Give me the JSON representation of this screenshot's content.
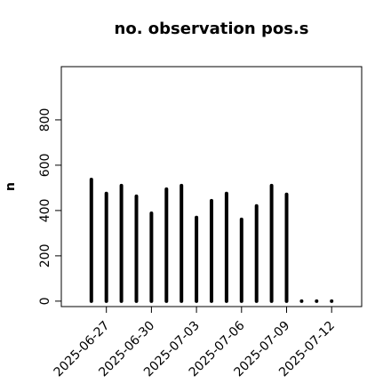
{
  "chart_data": {
    "type": "histlines",
    "title": "no. observation pos.s",
    "y_label": "n",
    "x": [
      "2025-06-26",
      "2025-06-27",
      "2025-06-28",
      "2025-06-29",
      "2025-06-30",
      "2025-07-01",
      "2025-07-02",
      "2025-07-03",
      "2025-07-04",
      "2025-07-05",
      "2025-07-06",
      "2025-07-07",
      "2025-07-08",
      "2025-07-09",
      "2025-07-10",
      "2025-07-11",
      "2025-07-12"
    ],
    "values": [
      537,
      475,
      510,
      463,
      388,
      494,
      510,
      369,
      443,
      475,
      361,
      420,
      510,
      471,
      0,
      0,
      0
    ],
    "color": "#000000",
    "xlim": [
      "2025-06-24",
      "2025-07-14"
    ],
    "xticks": [
      "2025-06-27",
      "2025-06-30",
      "2025-07-03",
      "2025-07-06",
      "2025-07-09",
      "2025-07-12"
    ],
    "highlight_tick": "2025-07-03",
    "highlight_color": "#228b22",
    "ylim": [
      -24,
      1035
    ],
    "yticks": [
      0,
      200,
      400,
      600,
      800
    ]
  }
}
